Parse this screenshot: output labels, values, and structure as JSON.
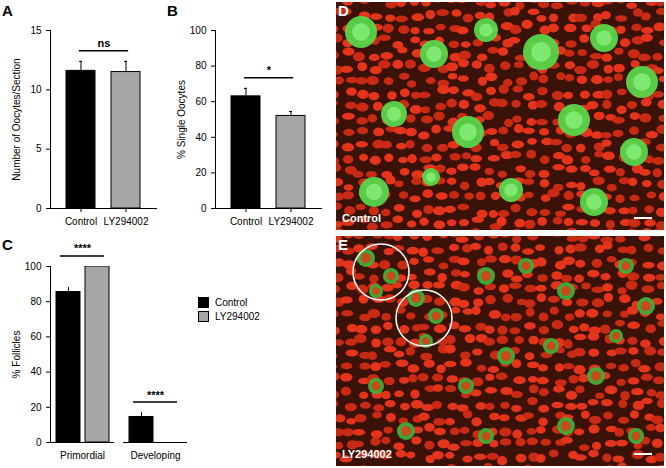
{
  "chart_data": [
    {
      "panel": "A",
      "type": "bar",
      "ylabel": "Number of Oocytes/Section",
      "categories": [
        "Control",
        "LY294002"
      ],
      "values": [
        11.6,
        11.5
      ],
      "errors": [
        0.8,
        0.9
      ],
      "colors": [
        "#000000",
        "#a6a6a6"
      ],
      "ylim": [
        0,
        15
      ],
      "yticks": [
        0,
        5,
        10,
        15
      ],
      "annotations": [
        "ns"
      ]
    },
    {
      "panel": "B",
      "type": "bar",
      "ylabel": "% Single Oocytes",
      "categories": [
        "Control",
        "LY294002"
      ],
      "values": [
        63,
        52
      ],
      "errors": [
        4.5,
        2.5
      ],
      "colors": [
        "#000000",
        "#a6a6a6"
      ],
      "ylim": [
        0,
        100
      ],
      "yticks": [
        0,
        20,
        40,
        60,
        80,
        100
      ],
      "annotations": [
        "*"
      ]
    },
    {
      "panel": "C",
      "type": "bar",
      "ylabel": "% Follicles",
      "categories": [
        "Primordial",
        "Developing"
      ],
      "series": [
        {
          "name": "Control",
          "color": "#000000",
          "values": [
            85.5,
            14.5
          ],
          "errors": [
            2.5,
            2.5
          ]
        },
        {
          "name": "LY294002",
          "color": "#a6a6a6",
          "values": [
            100,
            0
          ],
          "errors": [
            0,
            0
          ]
        }
      ],
      "ylim": [
        0,
        100
      ],
      "yticks": [
        0,
        20,
        40,
        60,
        80,
        100
      ],
      "annotations": [
        "****",
        "****"
      ],
      "legend": "right"
    }
  ],
  "images": [
    {
      "panel": "D",
      "label": "Control"
    },
    {
      "panel": "E",
      "label": "LY294002"
    }
  ]
}
